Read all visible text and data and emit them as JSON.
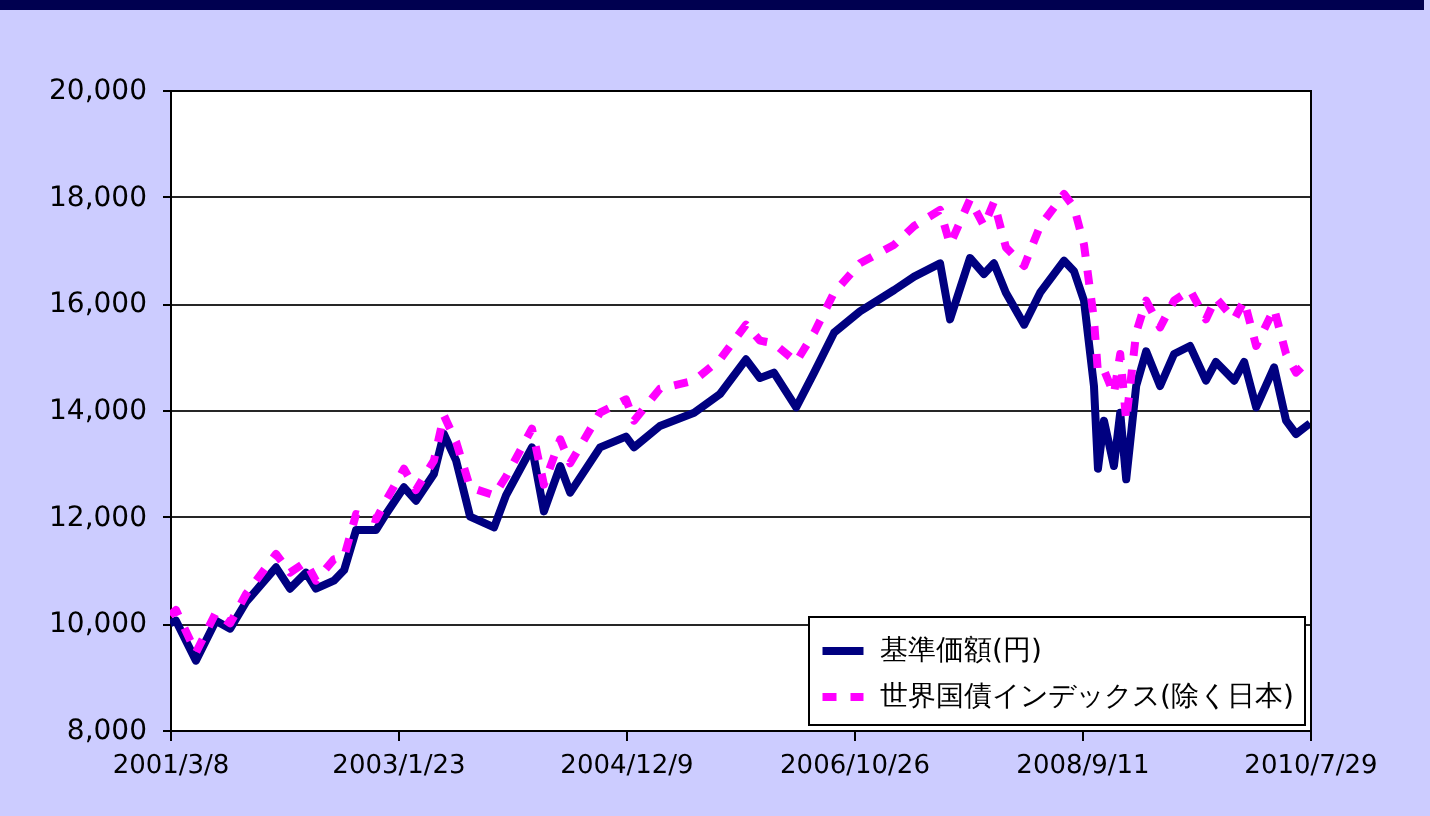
{
  "chart_data": {
    "type": "line",
    "x": [
      "2001-03-08",
      "2001-03-26",
      "2001-05-25",
      "2001-07-24",
      "2001-09-05",
      "2001-10-23",
      "2002-01-21",
      "2002-03-04",
      "2002-04-21",
      "2002-05-21",
      "2002-07-14",
      "2002-08-14",
      "2002-09-19",
      "2002-11-18",
      "2002-12-18",
      "2003-02-10",
      "2003-03-18",
      "2003-05-11",
      "2003-06-10",
      "2003-07-17",
      "2003-08-28",
      "2003-11-08",
      "2003-12-14",
      "2004-03-01",
      "2004-04-06",
      "2004-05-25",
      "2004-06-24",
      "2004-09-22",
      "2004-12-09",
      "2005-01-02",
      "2005-03-21",
      "2005-07-02",
      "2005-09-18",
      "2005-12-05",
      "2006-01-16",
      "2006-02-27",
      "2006-05-05",
      "2006-06-28",
      "2006-08-27",
      "2006-11-13",
      "2007-02-24",
      "2007-04-25",
      "2007-07-12",
      "2007-08-11",
      "2007-10-10",
      "2007-11-21",
      "2007-12-21",
      "2008-01-26",
      "2008-03-21",
      "2008-05-08",
      "2008-07-19",
      "2008-08-18",
      "2008-09-17",
      "2008-10-17",
      "2008-10-29",
      "2008-11-16",
      "2008-12-16",
      "2009-01-04",
      "2009-01-22",
      "2009-02-21",
      "2009-03-23",
      "2009-05-04",
      "2009-06-15",
      "2009-08-02",
      "2009-09-19",
      "2009-10-19",
      "2009-12-13",
      "2010-01-12",
      "2010-02-17",
      "2010-04-12",
      "2010-05-18",
      "2010-06-17",
      "2010-07-29"
    ],
    "series": [
      {
        "name": "基準価額(円)",
        "color": "#000080",
        "line_style": "solid",
        "values": [
          10000,
          10050,
          9300,
          10050,
          9900,
          10400,
          11050,
          10650,
          10950,
          10650,
          10800,
          11000,
          11750,
          11750,
          12050,
          12550,
          12300,
          12800,
          13550,
          13050,
          12000,
          11800,
          12400,
          13300,
          12100,
          12950,
          12450,
          13300,
          13500,
          13300,
          13700,
          13950,
          14300,
          14950,
          14600,
          14700,
          14050,
          14700,
          15450,
          15850,
          16250,
          16500,
          16750,
          15700,
          16850,
          16550,
          16750,
          16200,
          15600,
          16200,
          16800,
          16600,
          16050,
          14450,
          12900,
          13800,
          12950,
          13950,
          12700,
          14450,
          15100,
          14450,
          15050,
          15200,
          14550,
          14900,
          14550,
          14900,
          14050,
          14800,
          13800,
          13550,
          13750
        ]
      },
      {
        "name": "世界国債インデックス(除く日本)",
        "color": "#ff00ff",
        "line_style": "dashed",
        "values": [
          10150,
          10250,
          9450,
          10200,
          10000,
          10550,
          11300,
          10950,
          11150,
          10800,
          11200,
          11250,
          12050,
          11950,
          12300,
          12900,
          12500,
          13050,
          13900,
          13400,
          12550,
          12400,
          12750,
          13650,
          12600,
          13450,
          13000,
          13950,
          14200,
          13800,
          14400,
          14550,
          14950,
          15600,
          15300,
          15250,
          14900,
          15450,
          16200,
          16750,
          17100,
          17450,
          17750,
          17100,
          17950,
          17450,
          17900,
          17050,
          16700,
          17450,
          18050,
          17800,
          17100,
          15700,
          14700,
          14750,
          14300,
          15050,
          13800,
          15450,
          16050,
          15550,
          16050,
          16250,
          15700,
          16100,
          15700,
          16050,
          15200,
          15900,
          15050,
          14700,
          14950
        ]
      }
    ],
    "xlim": [
      "2001-03-08",
      "2010-07-29"
    ],
    "xticks": [
      {
        "value": "2001-03-08",
        "label": "2001/3/8"
      },
      {
        "value": "2003-01-23",
        "label": "2003/1/23"
      },
      {
        "value": "2004-12-09",
        "label": "2004/12/9"
      },
      {
        "value": "2006-10-26",
        "label": "2006/10/26"
      },
      {
        "value": "2008-09-11",
        "label": "2008/9/11"
      },
      {
        "value": "2010-07-29",
        "label": "2010/7/29"
      }
    ],
    "ylim": [
      8000,
      20000
    ],
    "yticks": [
      {
        "value": 8000,
        "label": "8,000"
      },
      {
        "value": 10000,
        "label": "10,000"
      },
      {
        "value": 12000,
        "label": "12,000"
      },
      {
        "value": 14000,
        "label": "14,000"
      },
      {
        "value": 16000,
        "label": "16,000"
      },
      {
        "value": 18000,
        "label": "18,000"
      },
      {
        "value": 20000,
        "label": "20,000"
      }
    ],
    "grid": "y",
    "legend": "bottom right"
  }
}
